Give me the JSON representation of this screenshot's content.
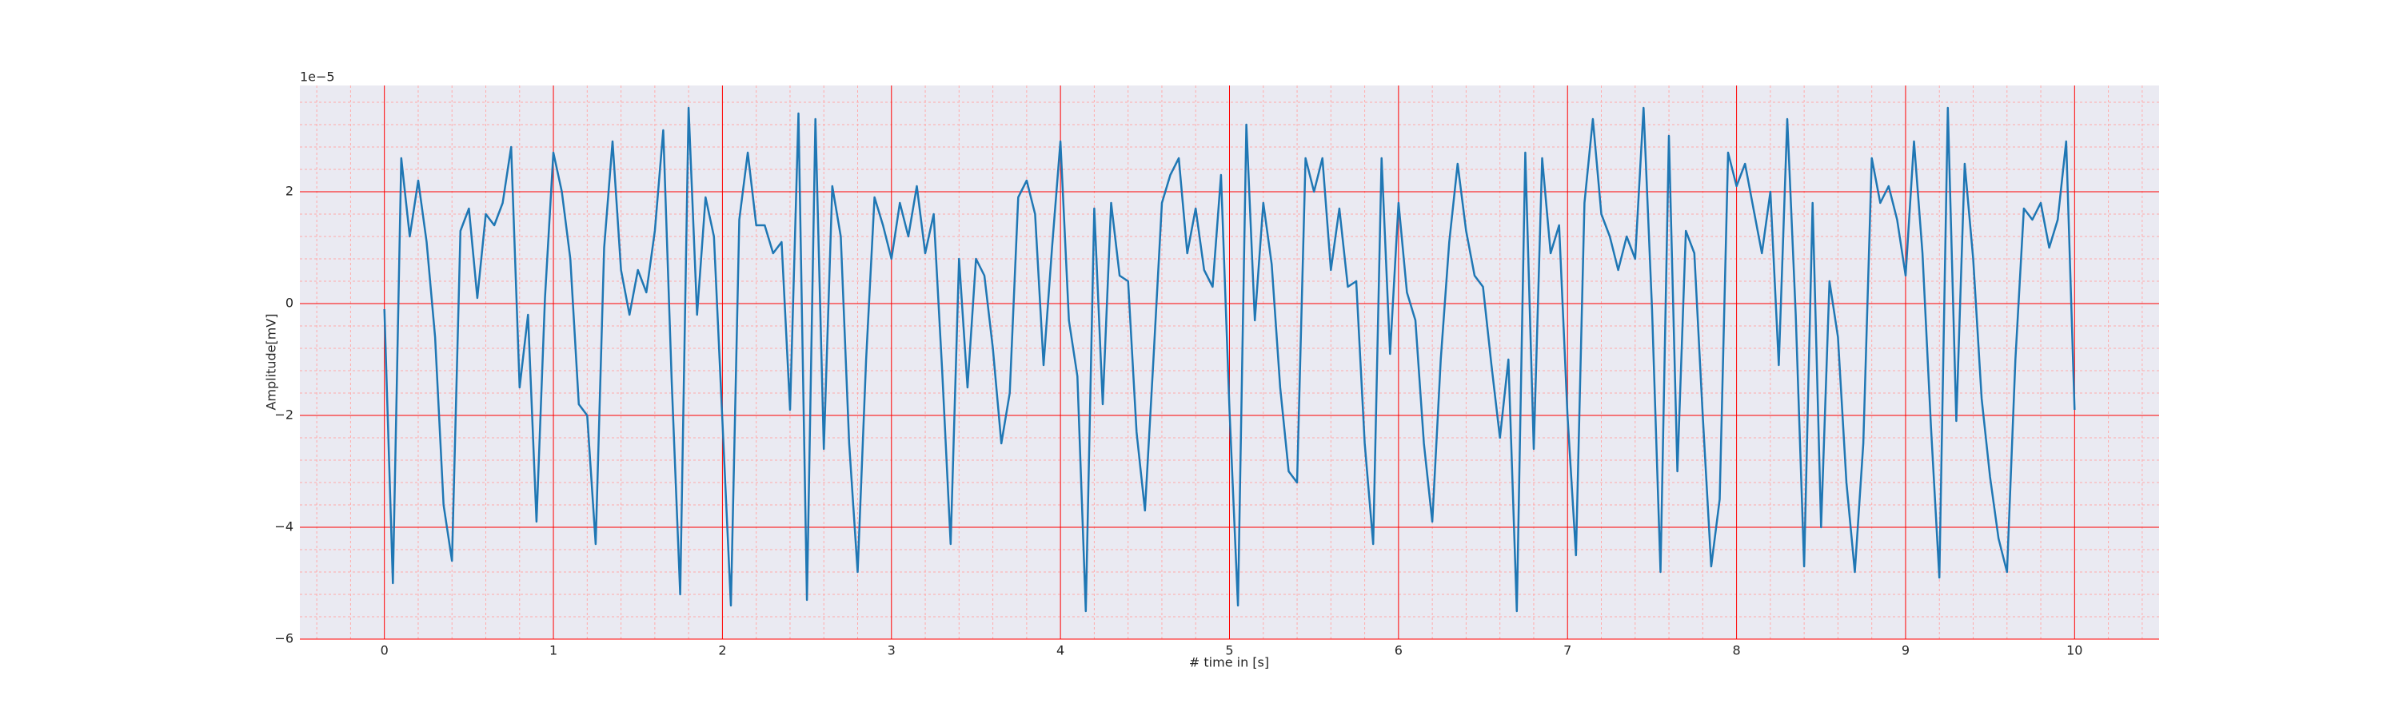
{
  "chart_data": {
    "type": "line",
    "xlabel": "# time in [s]",
    "ylabel": "Amplitude[mV]",
    "y_offset_label": "1e−5",
    "x": [
      0,
      0.05,
      0.1,
      0.15,
      0.2,
      0.25,
      0.3,
      0.35,
      0.4,
      0.45,
      0.5,
      0.55,
      0.6,
      0.65,
      0.7,
      0.75,
      0.8,
      0.85,
      0.9,
      0.95,
      1,
      1.05,
      1.1,
      1.15,
      1.2,
      1.25,
      1.3,
      1.35,
      1.4,
      1.45,
      1.5,
      1.55,
      1.6,
      1.65,
      1.7,
      1.75,
      1.8,
      1.85,
      1.9,
      1.95,
      2,
      2.05,
      2.1,
      2.15,
      2.2,
      2.25,
      2.3,
      2.35,
      2.4,
      2.45,
      2.5,
      2.55,
      2.6,
      2.65,
      2.7,
      2.75,
      2.8,
      2.85,
      2.9,
      2.95,
      3,
      3.05,
      3.1,
      3.15,
      3.2,
      3.25,
      3.3,
      3.35,
      3.4,
      3.45,
      3.5,
      3.55,
      3.6,
      3.65,
      3.7,
      3.75,
      3.8,
      3.85,
      3.9,
      3.95,
      4,
      4.05,
      4.1,
      4.15,
      4.2,
      4.25,
      4.3,
      4.35,
      4.4,
      4.45,
      4.5,
      4.55,
      4.6,
      4.65,
      4.7,
      4.75,
      4.8,
      4.85,
      4.9,
      4.95,
      5,
      5.05,
      5.1,
      5.15,
      5.2,
      5.25,
      5.3,
      5.35,
      5.4,
      5.45,
      5.5,
      5.55,
      5.6,
      5.65,
      5.7,
      5.75,
      5.8,
      5.85,
      5.9,
      5.95,
      6,
      6.05,
      6.1,
      6.15,
      6.2,
      6.25,
      6.3,
      6.35,
      6.4,
      6.45,
      6.5,
      6.55,
      6.6,
      6.65,
      6.7,
      6.75,
      6.8,
      6.85,
      6.9,
      6.95,
      7,
      7.05,
      7.1,
      7.15,
      7.2,
      7.25,
      7.3,
      7.35,
      7.4,
      7.45,
      7.5,
      7.55,
      7.6,
      7.65,
      7.7,
      7.75,
      7.8,
      7.85,
      7.9,
      7.95,
      8,
      8.05,
      8.1,
      8.15,
      8.2,
      8.25,
      8.3,
      8.35,
      8.4,
      8.45,
      8.5,
      8.55,
      8.6,
      8.65,
      8.7,
      8.75,
      8.8,
      8.85,
      8.9,
      8.95,
      9,
      9.05,
      9.1,
      9.15,
      9.2,
      9.25,
      9.3,
      9.35,
      9.4,
      9.45,
      9.5,
      9.55,
      9.6,
      9.65,
      9.7,
      9.75,
      9.8,
      9.85,
      9.9,
      9.95,
      10
    ],
    "series": [
      {
        "color": "#1f77b4",
        "values": [
          -0.1,
          -5.0,
          2.6,
          1.2,
          2.2,
          1.1,
          -0.6,
          -3.6,
          -4.6,
          1.3,
          1.7,
          0.1,
          1.6,
          1.4,
          1.8,
          2.8,
          -1.5,
          -0.2,
          -3.9,
          0.1,
          2.7,
          2.0,
          0.8,
          -1.8,
          -2.0,
          -4.3,
          1.0,
          2.9,
          0.6,
          -0.2,
          0.6,
          0.2,
          1.3,
          3.1,
          -1.4,
          -5.2,
          3.5,
          -0.2,
          1.9,
          1.2,
          -2.1,
          -5.4,
          1.5,
          2.7,
          1.4,
          1.4,
          0.9,
          1.1,
          -1.9,
          3.4,
          -5.3,
          3.3,
          -2.6,
          2.1,
          1.2,
          -2.5,
          -4.8,
          -1.0,
          1.9,
          1.4,
          0.8,
          1.8,
          1.2,
          2.1,
          0.9,
          1.6,
          -1.2,
          -4.3,
          0.8,
          -1.5,
          0.8,
          0.5,
          -0.8,
          -2.5,
          -1.6,
          1.9,
          2.2,
          1.6,
          -1.1,
          1.0,
          2.9,
          -0.3,
          -1.3,
          -5.5,
          1.7,
          -1.8,
          1.8,
          0.5,
          0.4,
          -2.3,
          -3.7,
          -1.0,
          1.8,
          2.3,
          2.6,
          0.9,
          1.7,
          0.6,
          0.3,
          2.3,
          -1.9,
          -5.4,
          3.2,
          -0.3,
          1.8,
          0.7,
          -1.5,
          -3.0,
          -3.2,
          2.6,
          2.0,
          2.6,
          0.6,
          1.7,
          0.3,
          0.4,
          -2.5,
          -4.3,
          2.6,
          -0.9,
          1.8,
          0.2,
          -0.3,
          -2.5,
          -3.9,
          -1.0,
          1.1,
          2.5,
          1.3,
          0.5,
          0.3,
          -1.1,
          -2.4,
          -1.0,
          -5.5,
          2.7,
          -2.6,
          2.6,
          0.9,
          1.4,
          -2.0,
          -4.5,
          1.8,
          3.3,
          1.6,
          1.2,
          0.6,
          1.2,
          0.8,
          3.5,
          -0.1,
          -4.8,
          3.0,
          -3.0,
          1.3,
          0.9,
          -2.0,
          -4.7,
          -3.5,
          2.7,
          2.1,
          2.5,
          1.7,
          0.9,
          2.0,
          -1.1,
          3.3,
          -0.2,
          -4.7,
          1.8,
          -4.0,
          0.4,
          -0.6,
          -3.2,
          -4.8,
          -2.5,
          2.6,
          1.8,
          2.1,
          1.5,
          0.5,
          2.9,
          0.9,
          -2.2,
          -4.9,
          3.5,
          -2.1,
          2.5,
          0.8,
          -1.7,
          -3.1,
          -4.2,
          -4.8,
          -1.0,
          1.7,
          1.5,
          1.8,
          1.0,
          1.5,
          2.9,
          -1.9
        ]
      }
    ],
    "xlim": [
      -0.5,
      10.5
    ],
    "xticks": [
      0,
      1,
      2,
      3,
      4,
      5,
      6,
      7,
      8,
      9,
      10
    ],
    "ylim": [
      -6,
      3.9
    ],
    "yticks": [
      {
        "value": -6,
        "label": "−6"
      },
      {
        "value": -4,
        "label": "−4"
      },
      {
        "value": -2,
        "label": "−2"
      },
      0,
      2
    ],
    "grid": true,
    "minor_grid": true,
    "grid_color": "#ff0000",
    "minor_grid_color": "#ffaaaa",
    "background": "#eaeaf2"
  }
}
